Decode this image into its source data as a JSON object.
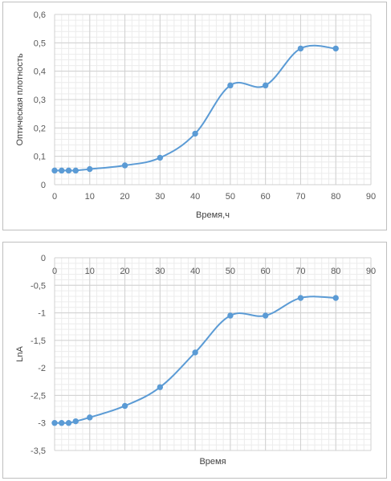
{
  "chart_data": [
    {
      "type": "line",
      "title": "",
      "xlabel": "Время,ч",
      "ylabel": "Оптическая плотность",
      "xlim": [
        0,
        90
      ],
      "ylim": [
        0,
        0.6
      ],
      "x_ticks": [
        "0",
        "10",
        "20",
        "30",
        "40",
        "50",
        "60",
        "70",
        "80",
        "90"
      ],
      "y_ticks": [
        "0",
        "0,1",
        "0,2",
        "0,3",
        "0,4",
        "0,5",
        "0,6"
      ],
      "grid": true,
      "legend": "none",
      "series": [
        {
          "color": "#5b9bd5",
          "x": [
            0,
            2,
            4,
            6,
            10,
            20,
            30,
            40,
            50,
            60,
            70,
            80
          ],
          "y": [
            0.05,
            0.05,
            0.05,
            0.05,
            0.055,
            0.068,
            0.095,
            0.18,
            0.35,
            0.35,
            0.48,
            0.48
          ]
        }
      ]
    },
    {
      "type": "line",
      "title": "",
      "xlabel": "Время",
      "ylabel": "LnA",
      "xlim": [
        0,
        90
      ],
      "ylim": [
        -3.5,
        0
      ],
      "x_ticks": [
        "0",
        "10",
        "20",
        "30",
        "40",
        "50",
        "60",
        "70",
        "80",
        "90"
      ],
      "y_ticks": [
        "0",
        "-0,5",
        "-1",
        "-1,5",
        "-2",
        "-2,5",
        "-3",
        "-3,5"
      ],
      "grid": true,
      "legend": "none",
      "series": [
        {
          "color": "#5b9bd5",
          "x": [
            0,
            2,
            4,
            6,
            10,
            20,
            30,
            40,
            50,
            60,
            70,
            80
          ],
          "y": [
            -3.0,
            -3.0,
            -3.0,
            -2.97,
            -2.9,
            -2.69,
            -2.35,
            -1.72,
            -1.05,
            -1.05,
            -0.73,
            -0.73
          ]
        }
      ]
    }
  ]
}
